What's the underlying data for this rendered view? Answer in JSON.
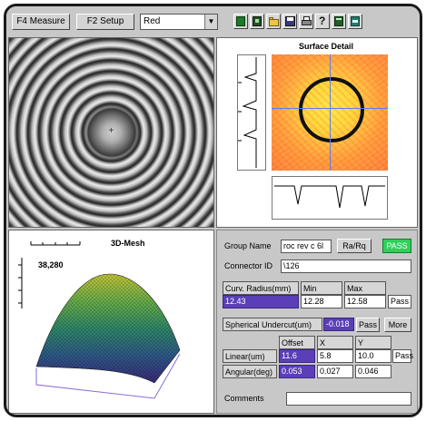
{
  "toolbar": {
    "measure_label": "F4  Measure",
    "setup_label": "F2 Setup",
    "color_select_value": "Red",
    "icons": [
      "view-green-icon",
      "view-dark-icon",
      "open-folder-icon",
      "save-icon",
      "print-icon",
      "help-icon",
      "view-alt-icon",
      "view-teal-icon"
    ]
  },
  "colors": {
    "pass_green": "#2ed05a",
    "value_purple": "#5b3fb8",
    "heat_yellow": "#ffd83a",
    "heat_orange": "#ff8a3a"
  },
  "surface": {
    "title": "Surface Detail"
  },
  "mesh": {
    "title": "3D-Mesh",
    "value": "38,280"
  },
  "data_panel": {
    "group_name_label": "Group Name",
    "group_name_value": "roc rev c 6l",
    "ra_rq_button": "Ra/Rq",
    "overall_status": "PASS",
    "connector_id_label": "Connector ID",
    "connector_id_value": "\\126",
    "curv_radius": {
      "label": "Curv. Radius(mm)",
      "value": "12.43",
      "min_label": "Min",
      "min_value": "12.28",
      "max_label": "Max",
      "max_value": "12.58",
      "result": "Pass"
    },
    "spherical_undercut": {
      "label": "Spherical Undercut(um)",
      "value": "-0.018",
      "result": "Pass",
      "more_button": "More"
    },
    "offset_header": "Offset",
    "x_header": "X",
    "y_header": "Y",
    "linear": {
      "label": "Linear(um)",
      "offset": "11.6",
      "x": "5.8",
      "y": "10.0",
      "result": "Pass"
    },
    "angular": {
      "label": "Angular(deg)",
      "offset": "0.053",
      "x": "0.027",
      "y": "0.046"
    },
    "comments_label": "Comments",
    "comments_value": ""
  }
}
